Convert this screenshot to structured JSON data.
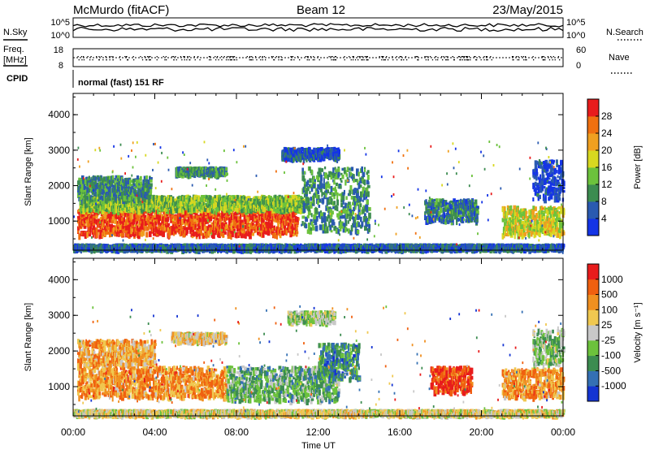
{
  "header": {
    "station": "McMurdo (fitACF)",
    "beam": "Beam 12",
    "date": "23/May/2015"
  },
  "info_panel": {
    "left_labels": {
      "nsky": "N.Sky",
      "freq_line1": "Freq.",
      "freq_line2": "[MHz]",
      "cpid": "CPID"
    },
    "right_labels": {
      "nsearch": "N.Search",
      "nave": "Nave"
    },
    "noise_ticks": {
      "upper": "10^5",
      "lower": "10^0"
    },
    "freq_ticks": {
      "upper": "18",
      "lower": "8"
    },
    "nave_ticks": {
      "upper": "60",
      "lower": "0"
    },
    "cpid_text": "normal (fast) 151 RF"
  },
  "chart_data": [
    {
      "type": "heatmap",
      "name": "power",
      "ylabel": "Slant Range [km]",
      "xlabel": "",
      "ylim": [
        180,
        4600
      ],
      "yticks": [
        1000,
        2000,
        3000,
        4000
      ],
      "xlim_hours": [
        0,
        24
      ],
      "colorbar": {
        "label": "Power [dB]",
        "ticks": [
          "4",
          "8",
          "12",
          "16",
          "20",
          "24",
          "28"
        ],
        "colors": [
          "#1434e6",
          "#2a5ab0",
          "#3c8c50",
          "#6cc23c",
          "#d8d820",
          "#f0a020",
          "#f07010",
          "#e81c1c"
        ],
        "range": [
          0,
          32
        ]
      },
      "patches": [
        {
          "t0": 0.2,
          "t1": 11.0,
          "r0": 600,
          "r1": 1350,
          "level": 0.88
        },
        {
          "t0": 0.3,
          "t1": 11.3,
          "r0": 1300,
          "r1": 1700,
          "level": 0.45
        },
        {
          "t0": 0.2,
          "t1": 3.8,
          "r0": 1600,
          "r1": 2250,
          "level": 0.3
        },
        {
          "t0": 5.0,
          "t1": 7.5,
          "r0": 2300,
          "r1": 2500,
          "level": 0.3
        },
        {
          "t0": 10.2,
          "t1": 13.0,
          "r0": 2750,
          "r1": 3050,
          "level": 0.15
        },
        {
          "t0": 11.2,
          "t1": 14.5,
          "r0": 700,
          "r1": 2500,
          "level": 0.3
        },
        {
          "t0": 0.0,
          "t1": 24.0,
          "r0": 200,
          "r1": 330,
          "level": 0.2
        },
        {
          "t0": 17.2,
          "t1": 19.8,
          "r0": 1000,
          "r1": 1600,
          "level": 0.25
        },
        {
          "t0": 21.0,
          "t1": 24.0,
          "r0": 600,
          "r1": 1400,
          "level": 0.55
        },
        {
          "t0": 22.5,
          "t1": 24.0,
          "r0": 1600,
          "r1": 2700,
          "level": 0.1
        }
      ]
    },
    {
      "type": "heatmap",
      "name": "velocity",
      "ylabel": "Slant Range [km]",
      "xlabel": "Time UT",
      "ylim": [
        180,
        4600
      ],
      "yticks": [
        1000,
        2000,
        3000,
        4000
      ],
      "xlim_hours": [
        0,
        24
      ],
      "xticklabels": [
        "00:00",
        "04:00",
        "08:00",
        "12:00",
        "16:00",
        "20:00",
        "00:00"
      ],
      "colorbar": {
        "label": "Velocity [m s⁻¹]",
        "ticks": [
          "1000",
          "500",
          "100",
          "25",
          "-25",
          "-100",
          "-500",
          "-1000"
        ],
        "colors": [
          "#1434d2",
          "#3470b4",
          "#3c8c50",
          "#6cc23c",
          "#c8c8c8",
          "#f0c850",
          "#f09020",
          "#f06010",
          "#e81c1c"
        ],
        "range": [
          -1000,
          1000
        ]
      },
      "patches": [
        {
          "t0": 0.2,
          "t1": 7.5,
          "r0": 700,
          "r1": 1550,
          "level": 0.72
        },
        {
          "t0": 7.5,
          "t1": 13.0,
          "r0": 600,
          "r1": 1550,
          "level": 0.35
        },
        {
          "t0": 0.2,
          "t1": 4.0,
          "r0": 1600,
          "r1": 2300,
          "level": 0.68
        },
        {
          "t0": 4.8,
          "t1": 7.5,
          "r0": 2250,
          "r1": 2500,
          "level": 0.6
        },
        {
          "t0": 10.5,
          "t1": 12.8,
          "r0": 2800,
          "r1": 3100,
          "level": 0.45
        },
        {
          "t0": 12.0,
          "t1": 14.0,
          "r0": 1200,
          "r1": 2200,
          "level": 0.25
        },
        {
          "t0": 0.0,
          "t1": 24.0,
          "r0": 200,
          "r1": 330,
          "level": 0.55
        },
        {
          "t0": 17.5,
          "t1": 19.5,
          "r0": 850,
          "r1": 1550,
          "level": 0.9
        },
        {
          "t0": 21.0,
          "t1": 24.0,
          "r0": 700,
          "r1": 1500,
          "level": 0.72
        },
        {
          "t0": 22.5,
          "t1": 24.0,
          "r0": 1600,
          "r1": 2600,
          "level": 0.4
        }
      ]
    }
  ]
}
